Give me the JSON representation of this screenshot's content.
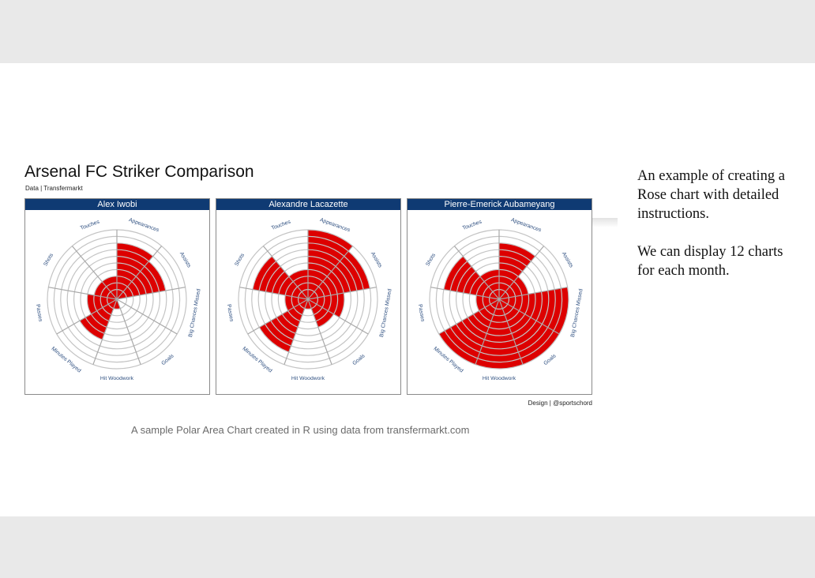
{
  "figure": {
    "title": "Arsenal FC Striker Comparison",
    "source": "Data | Transfermarkt",
    "credit": "Design | @sportschord"
  },
  "caption": "A sample Polar Area Chart created in R using data from transfermarkt.com",
  "side_text": {
    "paragraph_1": "An example of creating a Rose chart with detailed instructions.",
    "paragraph_2": "We can display 12 charts for each month."
  },
  "colors": {
    "bar": "#dd0000",
    "strip": "#0f3a73",
    "grid": "#c4c4c4",
    "label": "#2e4f80"
  },
  "chart_data": [
    {
      "type": "rose",
      "title": "Alex Iwobi",
      "categories": [
        "Appearances",
        "Assists",
        "Big Chances Missed",
        "Goals",
        "Hit Woodwork",
        "Minutes Played",
        "Passes",
        "Shots",
        "Touches"
      ],
      "values": [
        8,
        7,
        0,
        0,
        1,
        6,
        4,
        3,
        3
      ],
      "rlim": [
        0,
        10
      ]
    },
    {
      "type": "rose",
      "title": "Alexandre Lacazette",
      "categories": [
        "Appearances",
        "Assists",
        "Big Chances Missed",
        "Goals",
        "Hit Woodwork",
        "Minutes Played",
        "Passes",
        "Shots",
        "Touches"
      ],
      "values": [
        10,
        9,
        5,
        4,
        1,
        8,
        3,
        8,
        4
      ],
      "rlim": [
        0,
        10
      ]
    },
    {
      "type": "rose",
      "title": "Pierre-Emerick Aubameyang",
      "categories": [
        "Appearances",
        "Assists",
        "Big Chances Missed",
        "Goals",
        "Hit Woodwork",
        "Minutes Played",
        "Passes",
        "Shots",
        "Touches"
      ],
      "values": [
        8,
        4,
        10,
        10,
        10,
        10,
        3,
        8,
        4
      ],
      "rlim": [
        0,
        10
      ]
    }
  ]
}
